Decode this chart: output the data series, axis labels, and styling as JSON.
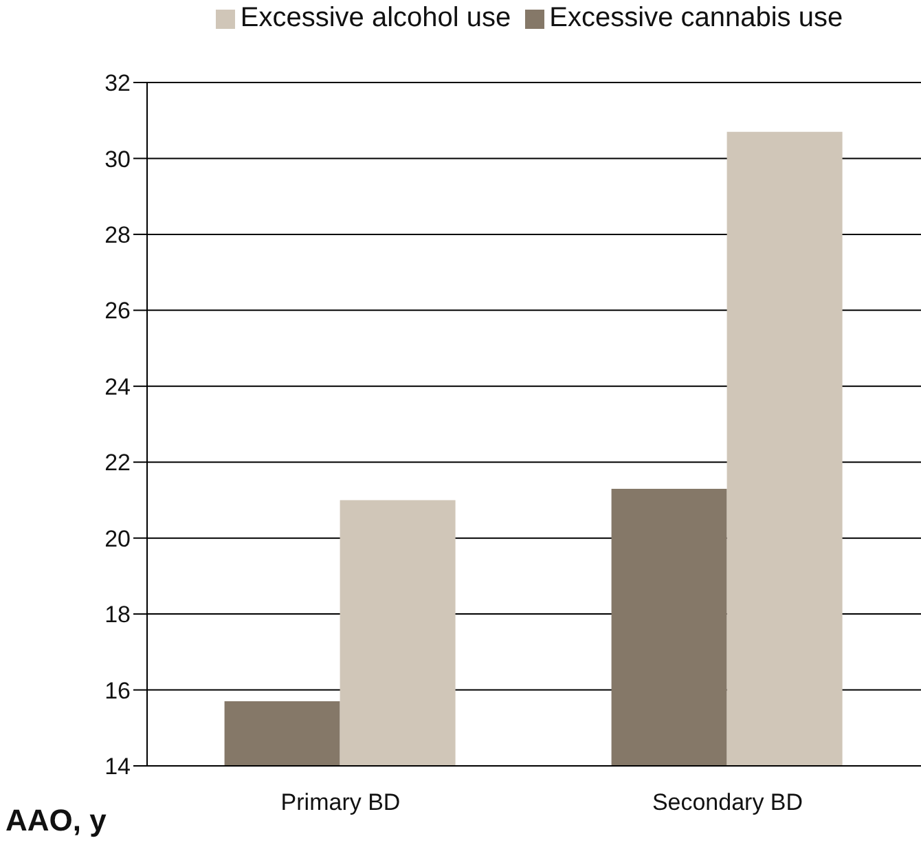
{
  "chart_data": {
    "type": "bar",
    "ylabel": "AAO, y",
    "categories": [
      "Primary BD",
      "Secondary BD"
    ],
    "series": [
      {
        "name": "Excessive cannabis use",
        "color": "#857868",
        "values": [
          15.7,
          21.3
        ]
      },
      {
        "name": "Excessive alcohol use",
        "color": "#d0c6b8",
        "values": [
          21.0,
          30.7
        ]
      }
    ],
    "ylim": [
      14,
      32
    ],
    "yticks": [
      14,
      16,
      18,
      20,
      22,
      24,
      26,
      28,
      30,
      32
    ],
    "grid": "y",
    "legend": "top"
  }
}
